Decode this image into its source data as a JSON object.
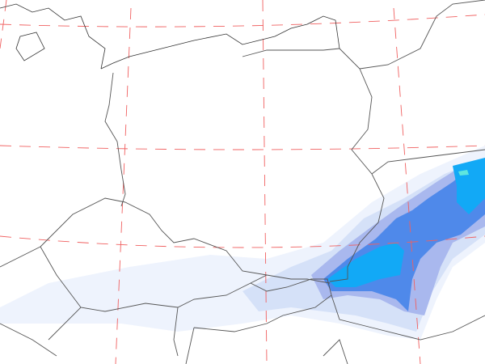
{
  "map": {
    "type": "precipitation-forecast",
    "precip_colors": [
      "#eef3fd",
      "#d5e1f8",
      "#a9b8ee",
      "#4f89ea",
      "#12a9f6",
      "#5fe6de"
    ],
    "gridline_color": "#f06060",
    "border_color": "#555555"
  }
}
